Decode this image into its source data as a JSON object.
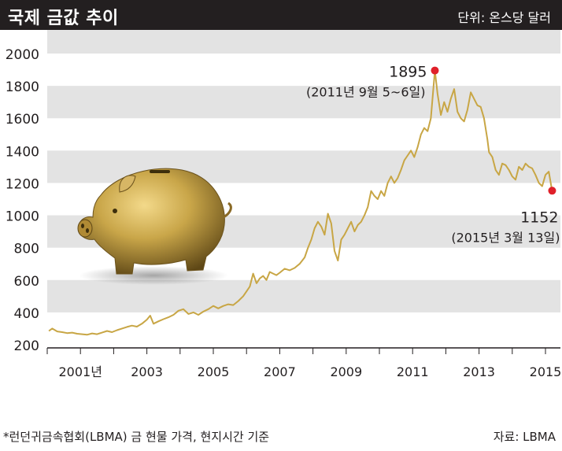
{
  "header": {
    "title": "국제 금값 추이",
    "unit": "단위: 온스당 달러"
  },
  "footnote": "*런던귀금속협회(LBMA) 금 현물 가격, 현지시간 기준",
  "source": "자료: LBMA",
  "colors": {
    "header_bg": "#231f20",
    "band": "#e3e3e3",
    "line": "#c8a645",
    "marker": "#e0202a",
    "text": "#231f20"
  },
  "chart_data": {
    "type": "line",
    "title": "국제 금값 추이",
    "ylabel": "",
    "xlabel": "",
    "ylim": [
      200,
      2000
    ],
    "xlim": [
      2000.0,
      2015.45
    ],
    "yticks": [
      {
        "value": 200,
        "label": "200"
      },
      {
        "value": 400,
        "label": "400"
      },
      {
        "value": 600,
        "label": "600"
      },
      {
        "value": 800,
        "label": "800"
      },
      {
        "value": 1000,
        "label": "1000"
      },
      {
        "value": 1200,
        "label": "1200"
      },
      {
        "value": 1400,
        "label": "1400"
      },
      {
        "value": 1600,
        "label": "1600"
      },
      {
        "value": 1800,
        "label": "1800"
      },
      {
        "value": 2000,
        "label": "2000"
      }
    ],
    "xticks": [
      {
        "value": 2001,
        "label": "2001년"
      },
      {
        "value": 2003,
        "label": "2003"
      },
      {
        "value": 2005,
        "label": "2005"
      },
      {
        "value": 2007,
        "label": "2007"
      },
      {
        "value": 2009,
        "label": "2009"
      },
      {
        "value": 2011,
        "label": "2011"
      },
      {
        "value": 2013,
        "label": "2013"
      },
      {
        "value": 2015,
        "label": "2015"
      }
    ],
    "grid": "alternating horizontal bands",
    "series": [
      {
        "x": [
          2000.05,
          2000.15,
          2000.3,
          2000.45,
          2000.6,
          2000.75,
          2000.9,
          2001.05,
          2001.2,
          2001.35,
          2001.5,
          2001.65,
          2001.8,
          2001.95,
          2002.1,
          2002.25,
          2002.4,
          2002.55,
          2002.7,
          2002.85,
          2003.0,
          2003.1,
          2003.2,
          2003.35,
          2003.5,
          2003.65,
          2003.8,
          2003.95,
          2004.1,
          2004.25,
          2004.4,
          2004.55,
          2004.7,
          2004.85,
          2005.0,
          2005.15,
          2005.3,
          2005.45,
          2005.6,
          2005.75,
          2005.9,
          2006.0,
          2006.1,
          2006.2,
          2006.3,
          2006.4,
          2006.5,
          2006.6,
          2006.7,
          2006.8,
          2006.9,
          2007.0,
          2007.15,
          2007.3,
          2007.45,
          2007.6,
          2007.75,
          2007.85,
          2007.95,
          2008.05,
          2008.15,
          2008.25,
          2008.35,
          2008.45,
          2008.55,
          2008.65,
          2008.75,
          2008.85,
          2008.95,
          2009.05,
          2009.15,
          2009.25,
          2009.35,
          2009.45,
          2009.55,
          2009.65,
          2009.75,
          2009.85,
          2009.95,
          2010.05,
          2010.15,
          2010.25,
          2010.35,
          2010.45,
          2010.55,
          2010.65,
          2010.75,
          2010.85,
          2010.95,
          2011.05,
          2011.15,
          2011.25,
          2011.35,
          2011.45,
          2011.55,
          2011.67,
          2011.75,
          2011.85,
          2011.95,
          2012.05,
          2012.15,
          2012.25,
          2012.35,
          2012.45,
          2012.55,
          2012.65,
          2012.75,
          2012.85,
          2012.95,
          2013.05,
          2013.15,
          2013.25,
          2013.3,
          2013.4,
          2013.5,
          2013.6,
          2013.7,
          2013.8,
          2013.9,
          2014.0,
          2014.1,
          2014.2,
          2014.3,
          2014.4,
          2014.5,
          2014.6,
          2014.7,
          2014.8,
          2014.9,
          2015.0,
          2015.1,
          2015.2
        ],
        "y": [
          285,
          300,
          282,
          278,
          272,
          275,
          268,
          265,
          262,
          270,
          265,
          275,
          285,
          278,
          290,
          300,
          310,
          318,
          312,
          330,
          355,
          380,
          330,
          345,
          358,
          370,
          385,
          410,
          420,
          390,
          400,
          385,
          405,
          420,
          440,
          425,
          440,
          450,
          445,
          470,
          500,
          530,
          560,
          640,
          580,
          610,
          625,
          600,
          650,
          640,
          630,
          645,
          670,
          660,
          675,
          700,
          740,
          800,
          850,
          920,
          960,
          930,
          880,
          1010,
          950,
          780,
          720,
          850,
          880,
          920,
          960,
          900,
          940,
          960,
          1000,
          1050,
          1150,
          1120,
          1100,
          1150,
          1120,
          1200,
          1240,
          1200,
          1230,
          1280,
          1340,
          1370,
          1400,
          1360,
          1420,
          1500,
          1540,
          1520,
          1600,
          1895,
          1750,
          1620,
          1700,
          1640,
          1720,
          1780,
          1640,
          1600,
          1580,
          1650,
          1760,
          1720,
          1680,
          1670,
          1600,
          1470,
          1390,
          1360,
          1280,
          1250,
          1320,
          1310,
          1280,
          1240,
          1220,
          1300,
          1280,
          1320,
          1300,
          1290,
          1250,
          1200,
          1180,
          1250,
          1270,
          1152
        ]
      }
    ],
    "annotations": [
      {
        "value": "1895",
        "label": "(2011년 9월 5~6일)",
        "x": 2011.67,
        "y": 1895
      },
      {
        "value": "1152",
        "label": "(2015년 3월 13일)",
        "x": 2015.2,
        "y": 1152
      }
    ]
  }
}
